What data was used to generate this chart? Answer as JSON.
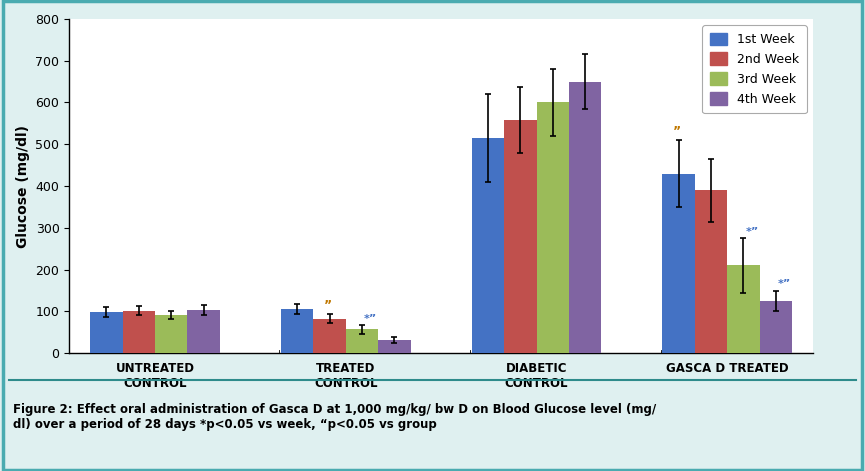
{
  "groups": [
    "UNTREATED\nCONTROL",
    "TREATED\nCONTROL",
    "DIABETIC\nCONTROL",
    "GASCA D TREATED"
  ],
  "weeks": [
    "1st Week",
    "2nd Week",
    "3rd Week",
    "4th Week"
  ],
  "values": [
    [
      98,
      102,
      92,
      103
    ],
    [
      105,
      83,
      57,
      32
    ],
    [
      515,
      558,
      600,
      650
    ],
    [
      430,
      390,
      210,
      125
    ]
  ],
  "errors": [
    [
      12,
      10,
      10,
      12
    ],
    [
      12,
      10,
      10,
      8
    ],
    [
      105,
      80,
      80,
      65
    ],
    [
      80,
      75,
      65,
      25
    ]
  ],
  "bar_colors": [
    "#4472C4",
    "#C0504D",
    "#9BBB59",
    "#8064A2"
  ],
  "ylabel": "Glucose (mg/dl)",
  "ylim": [
    0,
    800
  ],
  "yticks": [
    0,
    100,
    200,
    300,
    400,
    500,
    600,
    700,
    800
  ],
  "background_color": "#DFF0F0",
  "plot_bg": "#FFFFFF",
  "caption": "Figure 2: Effect oral administration of Gasca D at 1,000 mg/kg/ bw D on Blood Glucose level (mg/\ndl) over a period of 28 days *p<0.05 vs week, “p<0.05 vs group"
}
